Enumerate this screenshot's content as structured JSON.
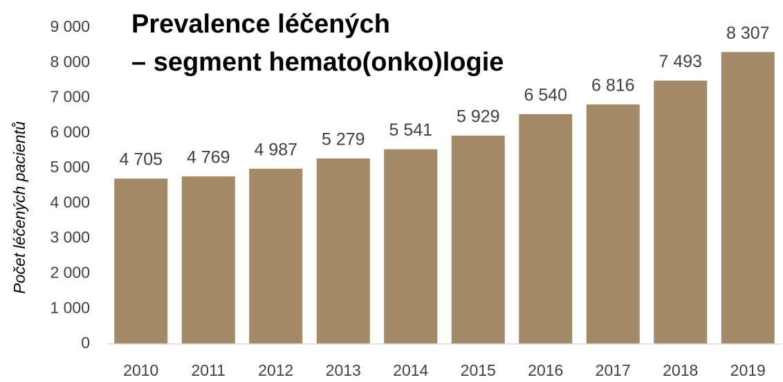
{
  "chart_data": {
    "type": "bar",
    "title": [
      "Prevalence léčených",
      "– segment hemato(onko)logie"
    ],
    "y_axis_label": "Počet léčených pacientů",
    "categories": [
      "2010",
      "2011",
      "2012",
      "2013",
      "2014",
      "2015",
      "2016",
      "2017",
      "2018",
      "2019"
    ],
    "values": [
      4705,
      4769,
      4987,
      5279,
      5541,
      5929,
      6540,
      6816,
      7493,
      8307
    ],
    "value_labels": [
      "4 705",
      "4 769",
      "4 987",
      "5 279",
      "5 541",
      "5 929",
      "6 540",
      "6 816",
      "7 493",
      "8 307"
    ],
    "color": "#a38b6a",
    "ylim": [
      0,
      9000
    ],
    "yticks": [
      0,
      {
        "value": 1000,
        "label": "1 000"
      },
      {
        "value": 2000,
        "label": "2 000"
      },
      {
        "value": 3000,
        "label": "3 000"
      },
      {
        "value": 4000,
        "label": "4 000"
      },
      {
        "value": 5000,
        "label": "5 000"
      },
      {
        "value": 6000,
        "label": "6 000"
      },
      {
        "value": 7000,
        "label": "7 000"
      },
      {
        "value": 8000,
        "label": "8 000"
      },
      {
        "value": 9000,
        "label": "9 000"
      }
    ],
    "grid": false
  }
}
